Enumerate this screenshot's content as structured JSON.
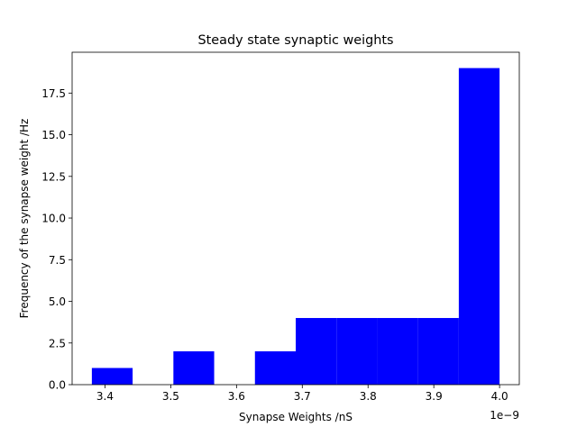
{
  "chart_data": {
    "type": "bar",
    "title": "Steady state synaptic weights",
    "xlabel": "Synapse Weights /nS",
    "ylabel": "Frequency of the synapse weight /Hz",
    "x_offset_label": "1e−9",
    "xlim": [
      3.35,
      4.03
    ],
    "ylim": [
      0,
      19.95
    ],
    "bins": [
      {
        "x0": 3.38,
        "x1": 3.442,
        "value": 1
      },
      {
        "x0": 3.442,
        "x1": 3.504,
        "value": 0
      },
      {
        "x0": 3.504,
        "x1": 3.566,
        "value": 2
      },
      {
        "x0": 3.566,
        "x1": 3.628,
        "value": 0
      },
      {
        "x0": 3.628,
        "x1": 3.69,
        "value": 2
      },
      {
        "x0": 3.69,
        "x1": 3.752,
        "value": 4
      },
      {
        "x0": 3.752,
        "x1": 3.814,
        "value": 4
      },
      {
        "x0": 3.814,
        "x1": 3.876,
        "value": 4
      },
      {
        "x0": 3.876,
        "x1": 3.938,
        "value": 4
      },
      {
        "x0": 3.938,
        "x1": 4.0,
        "value": 19
      }
    ],
    "x_ticks": [
      {
        "value": 3.4,
        "label": "3.4"
      },
      {
        "value": 3.5,
        "label": "3.5"
      },
      {
        "value": 3.6,
        "label": "3.6"
      },
      {
        "value": 3.7,
        "label": "3.7"
      },
      {
        "value": 3.8,
        "label": "3.8"
      },
      {
        "value": 3.9,
        "label": "3.9"
      },
      {
        "value": 4.0,
        "label": "4.0"
      }
    ],
    "y_ticks": [
      {
        "value": 0,
        "label": "0.0"
      },
      {
        "value": 2.5,
        "label": "2.5"
      },
      {
        "value": 5,
        "label": "5.0"
      },
      {
        "value": 7.5,
        "label": "7.5"
      },
      {
        "value": 10,
        "label": "10.0"
      },
      {
        "value": 12.5,
        "label": "12.5"
      },
      {
        "value": 15,
        "label": "15.0"
      },
      {
        "value": 17.5,
        "label": "17.5"
      }
    ],
    "bar_color": "#0000ff",
    "grid": false,
    "legend": "none"
  }
}
